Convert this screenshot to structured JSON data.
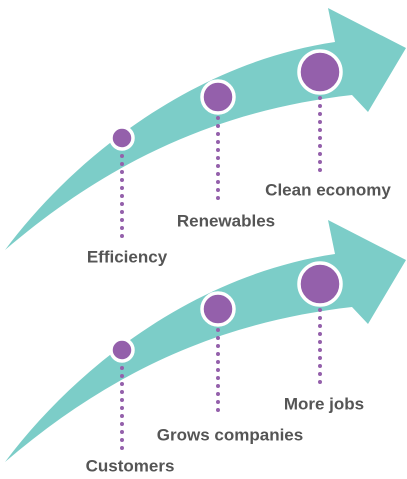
{
  "arrows": [
    {
      "steps": [
        {
          "label": "Efficiency"
        },
        {
          "label": "Renewables"
        },
        {
          "label": "Clean economy"
        }
      ]
    },
    {
      "steps": [
        {
          "label": "Customers"
        },
        {
          "label": "Grows companies"
        },
        {
          "label": "More jobs"
        }
      ]
    }
  ]
}
